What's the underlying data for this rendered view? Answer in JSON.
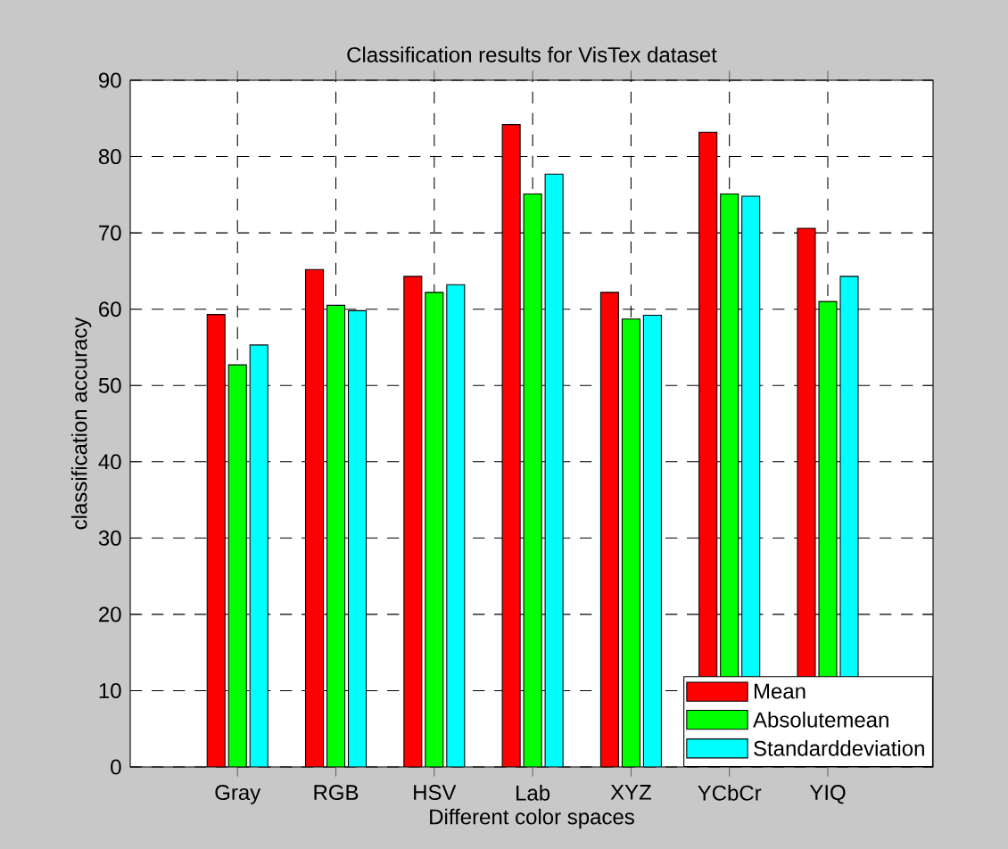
{
  "chart_data": {
    "type": "bar",
    "title": "Classification results for VisTex dataset",
    "xlabel": "Different color spaces",
    "ylabel": "classification accuracy",
    "categories": [
      "Gray",
      "RGB",
      "HSV",
      "Lab",
      "XYZ",
      "YCbCr",
      "YIQ"
    ],
    "series": [
      {
        "name": "Mean",
        "color": "#ff0000",
        "values": [
          59.3,
          65.2,
          64.3,
          84.2,
          62.2,
          83.2,
          70.6
        ]
      },
      {
        "name": "Absolutemean",
        "color": "#00ff00",
        "values": [
          52.7,
          60.5,
          62.2,
          75.1,
          58.7,
          75.1,
          61.0
        ]
      },
      {
        "name": "Standarddeviation",
        "color": "#00ffff",
        "values": [
          55.3,
          59.8,
          63.2,
          77.7,
          59.2,
          74.8,
          64.3
        ]
      }
    ],
    "ylim": [
      0,
      90
    ],
    "yticks": [
      0,
      10,
      20,
      30,
      40,
      50,
      60,
      70,
      80,
      90
    ],
    "grid": true,
    "legend": "bottom right"
  }
}
